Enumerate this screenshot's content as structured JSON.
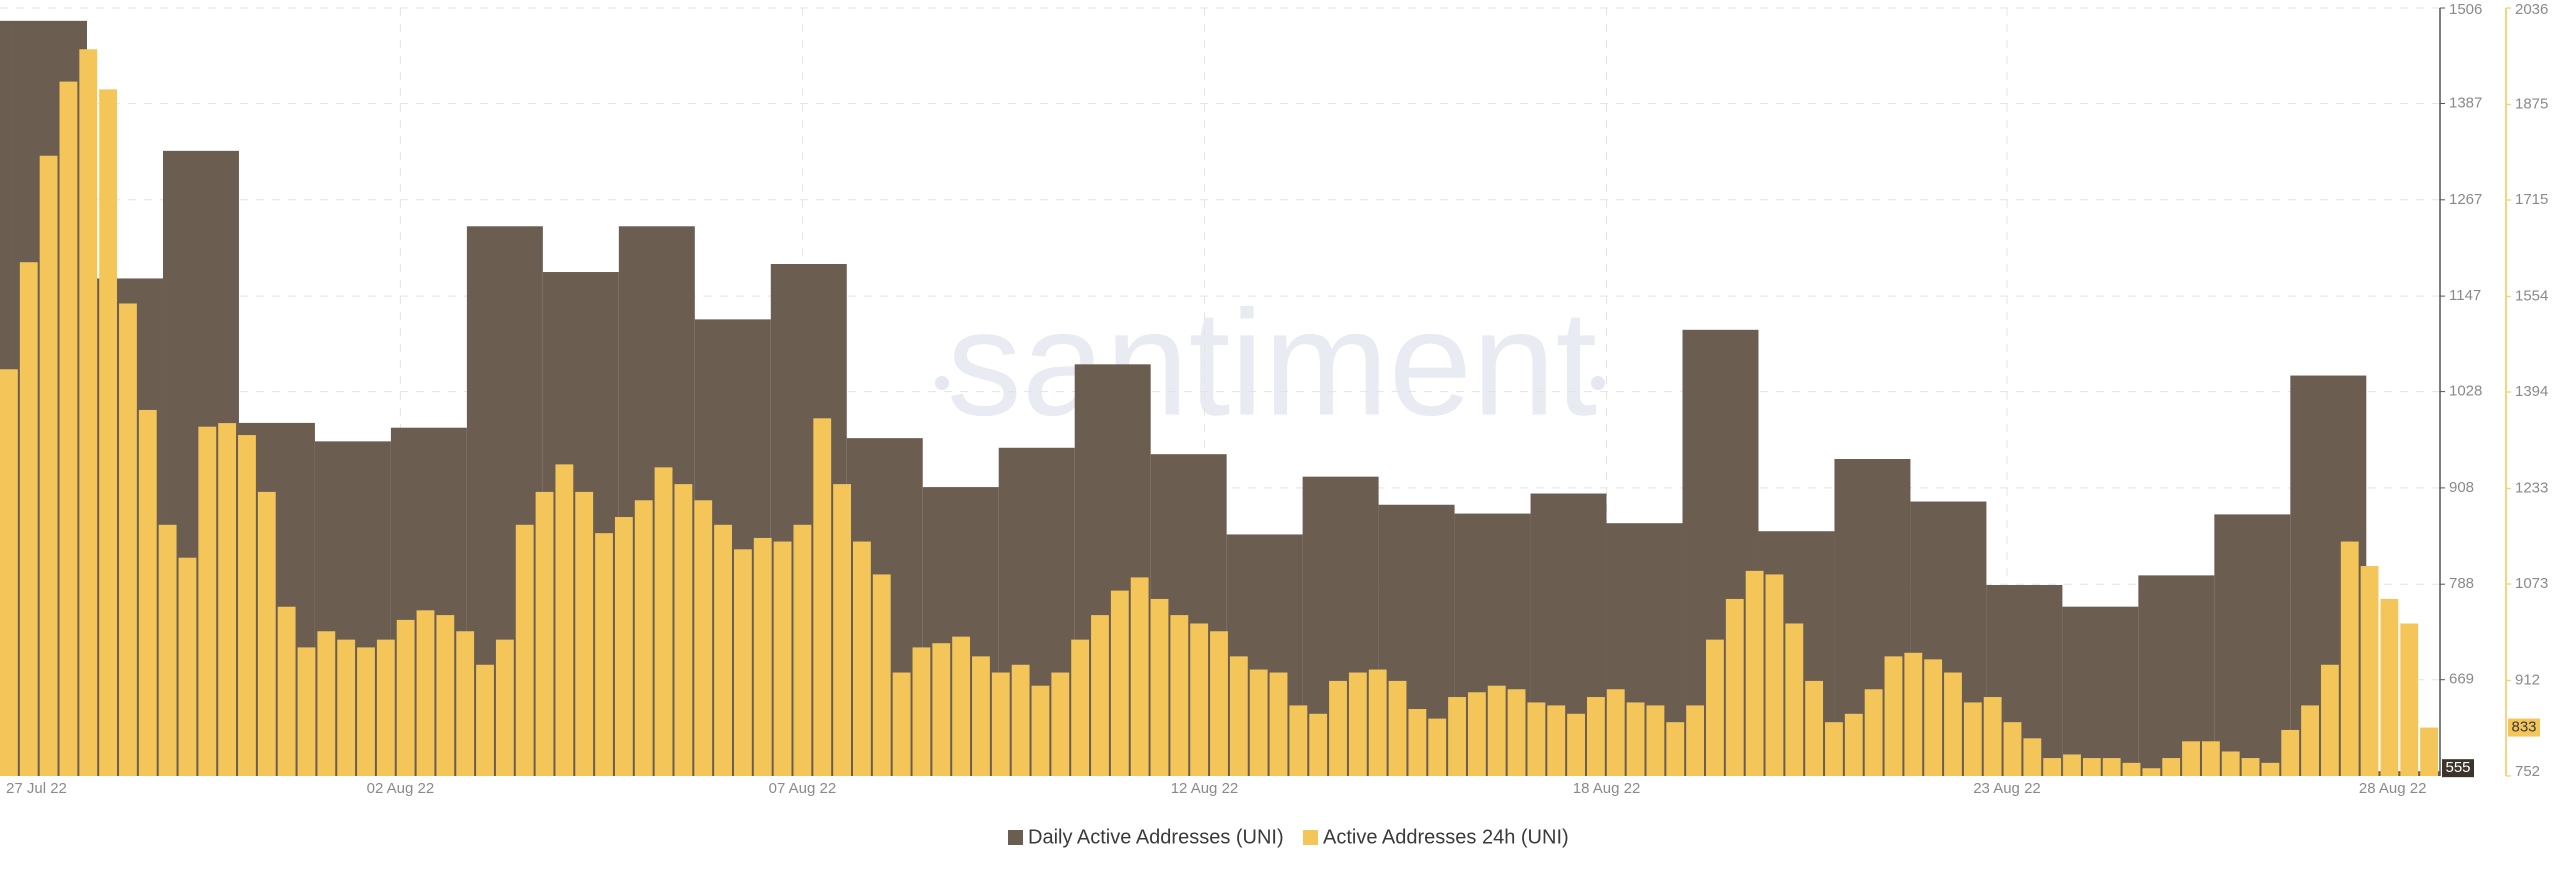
{
  "chart_data": {
    "type": "bar",
    "watermark": "santiment",
    "xlim": [
      "2022-07-27T20:31",
      "2022-08-28T23:17"
    ],
    "xticks": [
      {
        "value": "2022-07-27T20:31",
        "label": "27 Jul 22"
      },
      {
        "value": "2022-08-02T03:00",
        "label": "02 Aug 22"
      },
      {
        "value": "2022-08-07T10:00",
        "label": "07 Aug 22"
      },
      {
        "value": "2022-08-12T17:00",
        "label": "12 Aug 22"
      },
      {
        "value": "2022-08-18T00:00",
        "label": "18 Aug 22"
      },
      {
        "value": "2022-08-23T06:30",
        "label": "23 Aug 22"
      },
      {
        "value": "2022-08-28T19:00",
        "label": "28 Aug 22"
      }
    ],
    "ylim": [
      549,
      1506
    ],
    "yticks": [
      669,
      788,
      908,
      1028,
      1147,
      1267,
      1387,
      1506
    ],
    "y2lim": [
      752,
      2036
    ],
    "y2ticks": [
      752,
      912,
      1073,
      1233,
      1394,
      1554,
      1715,
      1875,
      2036
    ],
    "grid": true,
    "legend": "bottom",
    "series": [
      {
        "name": "Daily Active Addresses (UNI)",
        "color": "#6b5d50",
        "axis": "y",
        "x": [
          "2022-07-27",
          "2022-07-28",
          "2022-07-29",
          "2022-07-30",
          "2022-07-31",
          "2022-08-01",
          "2022-08-02",
          "2022-08-03",
          "2022-08-04",
          "2022-08-05",
          "2022-08-06",
          "2022-08-07",
          "2022-08-08",
          "2022-08-09",
          "2022-08-10",
          "2022-08-11",
          "2022-08-12",
          "2022-08-13",
          "2022-08-14",
          "2022-08-15",
          "2022-08-16",
          "2022-08-17",
          "2022-08-18",
          "2022-08-19",
          "2022-08-20",
          "2022-08-21",
          "2022-08-22",
          "2022-08-23",
          "2022-08-24",
          "2022-08-25",
          "2022-08-26",
          "2022-08-27",
          "2022-08-28"
        ],
        "values": [
          1490,
          1490,
          1169,
          1328,
          989,
          966,
          983,
          1234,
          1177,
          1234,
          1118,
          1187,
          970,
          909,
          958,
          1062,
          950,
          850,
          922,
          887,
          876,
          901,
          864,
          1105,
          854,
          944,
          891,
          787,
          760,
          799,
          875,
          1048,
          555
        ]
      },
      {
        "name": "Active Addresses 24h (UNI)",
        "color": "#f4c65a",
        "axis": "y2",
        "values": [
          1432,
          1611,
          1789,
          1913,
          1967,
          1900,
          1542,
          1364,
          1172,
          1117,
          1336,
          1342,
          1322,
          1227,
          1035,
          967,
          994,
          980,
          967,
          980,
          1013,
          1029,
          1021,
          994,
          938,
          980,
          1172,
          1227,
          1273,
          1227,
          1158,
          1185,
          1213,
          1268,
          1240,
          1213,
          1172,
          1131,
          1150,
          1144,
          1172,
          1350,
          1240,
          1144,
          1089,
          925,
          967,
          974,
          985,
          952,
          925,
          938,
          903,
          925,
          980,
          1021,
          1062,
          1084,
          1048,
          1021,
          1007,
          994,
          952,
          930,
          925,
          870,
          856,
          911,
          925,
          930,
          911,
          864,
          848,
          884,
          892,
          903,
          897,
          875,
          870,
          856,
          884,
          897,
          875,
          870,
          842,
          870,
          980,
          1048,
          1095,
          1089,
          1007,
          911,
          842,
          856,
          897,
          952,
          958,
          947,
          925,
          875,
          884,
          842,
          815,
          782,
          788,
          782,
          782,
          774,
          765,
          782,
          810,
          810,
          793,
          782,
          774,
          829,
          870,
          938,
          1144,
          1103,
          1048,
          1007,
          833
        ]
      }
    ]
  }
}
